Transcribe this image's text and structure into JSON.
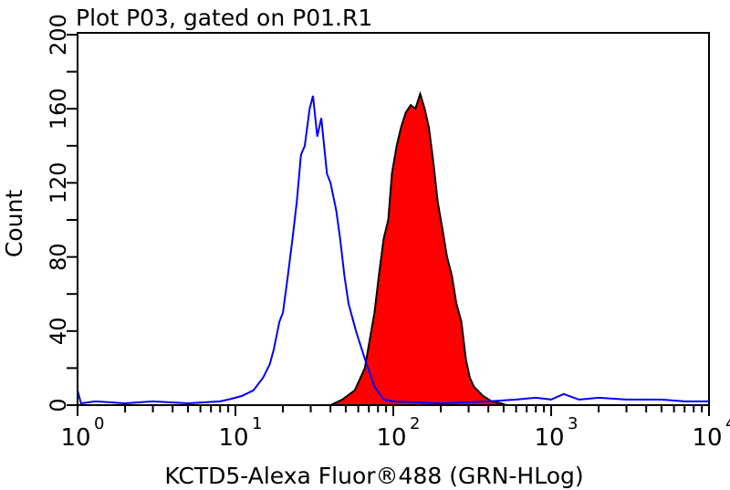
{
  "chart_data": {
    "type": "area",
    "title": "Plot P03, gated on P01.R1",
    "xlabel": "KCTD5-Alexa Fluor®488 (GRN-HLog)",
    "ylabel": "Count",
    "xscale": "log",
    "xlim": [
      1,
      10000
    ],
    "ylim": [
      0,
      200
    ],
    "x_ticks": [
      {
        "base": "10",
        "exp": "0"
      },
      {
        "base": "10",
        "exp": "1"
      },
      {
        "base": "10",
        "exp": "2"
      },
      {
        "base": "10",
        "exp": "3"
      },
      {
        "base": "10",
        "exp": "4"
      }
    ],
    "y_ticks": [
      "0",
      "40",
      "80",
      "120",
      "160",
      "200"
    ],
    "grid": false,
    "series": [
      {
        "style": "outline",
        "color": "#0000ff",
        "points": [
          [
            1,
            8
          ],
          [
            1.05,
            1
          ],
          [
            1.3,
            2
          ],
          [
            2,
            1
          ],
          [
            3,
            2
          ],
          [
            5,
            1
          ],
          [
            8,
            2
          ],
          [
            9,
            3
          ],
          [
            10,
            4
          ],
          [
            11,
            5
          ],
          [
            13,
            8
          ],
          [
            15,
            15
          ],
          [
            16.5,
            22
          ],
          [
            17.5,
            30
          ],
          [
            19,
            45
          ],
          [
            20,
            50
          ],
          [
            21.5,
            70
          ],
          [
            23,
            90
          ],
          [
            24.5,
            110
          ],
          [
            26,
            135
          ],
          [
            27.5,
            140
          ],
          [
            29.5,
            160
          ],
          [
            31,
            167
          ],
          [
            33,
            145
          ],
          [
            35,
            155
          ],
          [
            38,
            125
          ],
          [
            40,
            120
          ],
          [
            43.5,
            105
          ],
          [
            46,
            90
          ],
          [
            49,
            70
          ],
          [
            52,
            55
          ],
          [
            58,
            40
          ],
          [
            66,
            25
          ],
          [
            76,
            10
          ],
          [
            87,
            3
          ],
          [
            100,
            2
          ],
          [
            200,
            1
          ],
          [
            400,
            2
          ],
          [
            600,
            3
          ],
          [
            800,
            4
          ],
          [
            1000,
            3
          ],
          [
            1200,
            6
          ],
          [
            1500,
            3
          ],
          [
            2000,
            4
          ],
          [
            3000,
            3
          ],
          [
            5000,
            3
          ],
          [
            7000,
            2
          ],
          [
            10000,
            2
          ]
        ]
      },
      {
        "style": "filled",
        "color": "#ff0000",
        "outline": "#000000",
        "points": [
          [
            40,
            0
          ],
          [
            47.5,
            3
          ],
          [
            57,
            8
          ],
          [
            66,
            20
          ],
          [
            76,
            50
          ],
          [
            81,
            70
          ],
          [
            87,
            90
          ],
          [
            93,
            100
          ],
          [
            98,
            125
          ],
          [
            105,
            140
          ],
          [
            112,
            150
          ],
          [
            120,
            158
          ],
          [
            129,
            162
          ],
          [
            138,
            160
          ],
          [
            148,
            168
          ],
          [
            158,
            160
          ],
          [
            168,
            150
          ],
          [
            180,
            130
          ],
          [
            191,
            110
          ],
          [
            205,
            95
          ],
          [
            219,
            80
          ],
          [
            235,
            70
          ],
          [
            251,
            55
          ],
          [
            270,
            45
          ],
          [
            288,
            25
          ],
          [
            305,
            15
          ],
          [
            324,
            10
          ],
          [
            370,
            5
          ],
          [
            420,
            2
          ],
          [
            480,
            1
          ],
          [
            520,
            0
          ]
        ]
      }
    ]
  }
}
